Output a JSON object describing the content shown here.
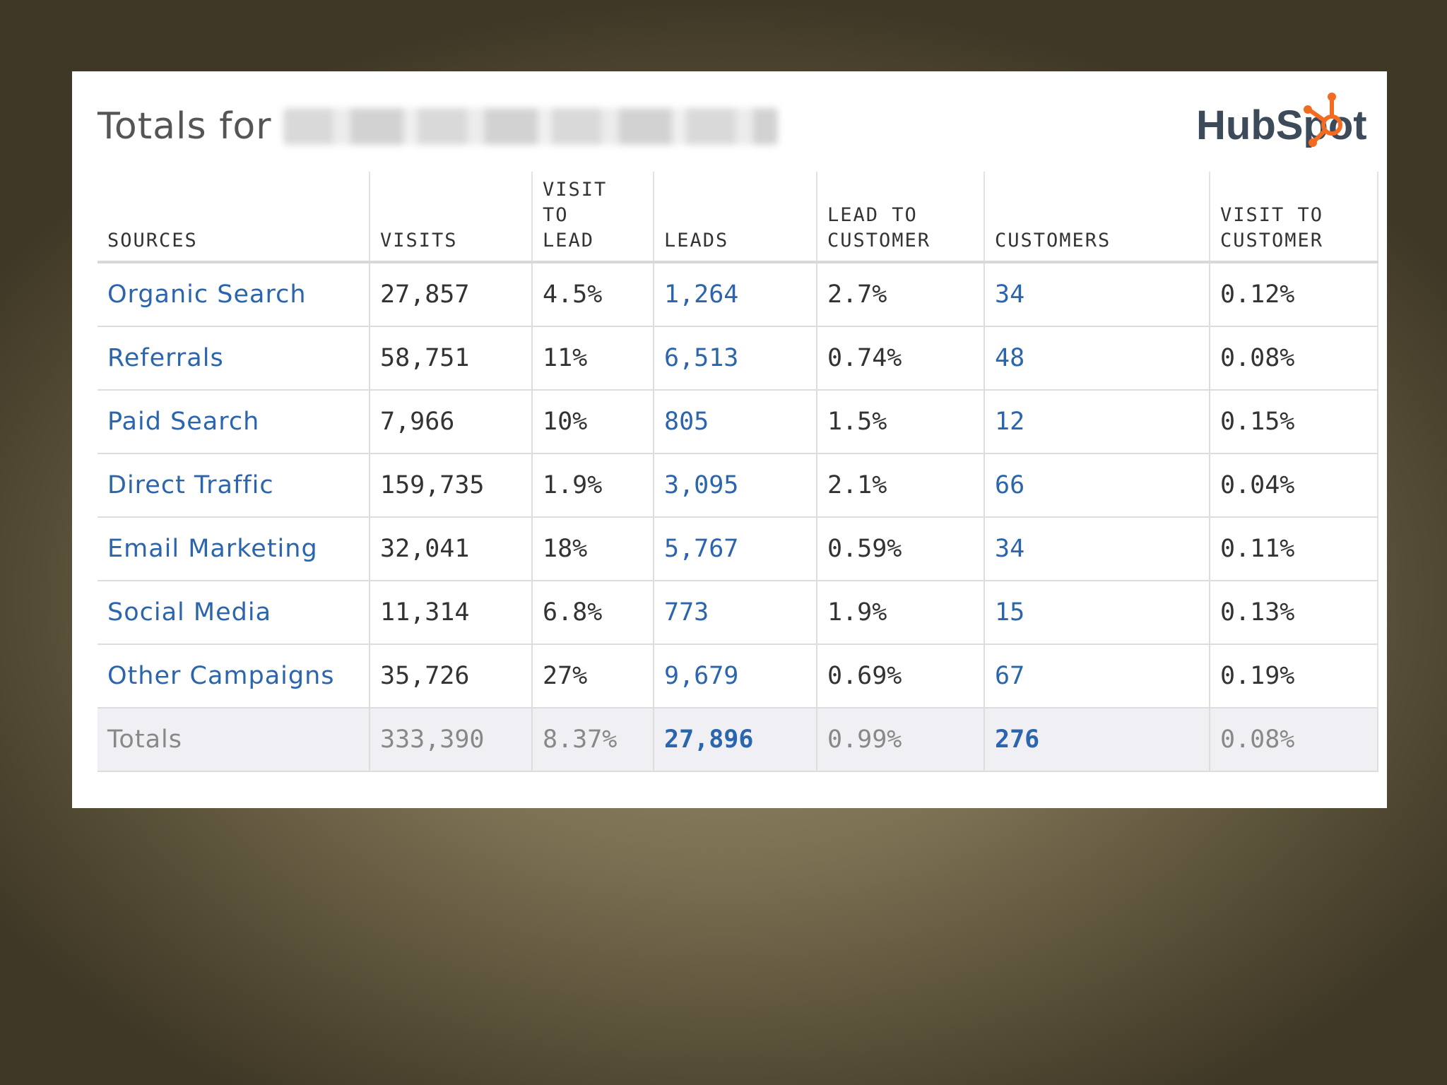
{
  "title_prefix": "Totals for",
  "logo_text": "HubSpot",
  "colors": {
    "link": "#2a65ad",
    "accent": "#f26b21"
  },
  "columns": [
    "SOURCES",
    "VISITS",
    "VISIT TO LEAD",
    "LEADS",
    "LEAD TO CUSTOMER",
    "CUSTOMERS",
    "VISIT TO CUSTOMER"
  ],
  "rows": [
    [
      "Organic Search",
      "27,857",
      "4.5%",
      "1,264",
      "2.7%",
      "34",
      "0.12%"
    ],
    [
      "Referrals",
      "58,751",
      "11%",
      "6,513",
      "0.74%",
      "48",
      "0.08%"
    ],
    [
      "Paid Search",
      "7,966",
      "10%",
      "805",
      "1.5%",
      "12",
      "0.15%"
    ],
    [
      "Direct Traffic",
      "159,735",
      "1.9%",
      "3,095",
      "2.1%",
      "66",
      "0.04%"
    ],
    [
      "Email Marketing",
      "32,041",
      "18%",
      "5,767",
      "0.59%",
      "34",
      "0.11%"
    ],
    [
      "Social Media",
      "11,314",
      "6.8%",
      "773",
      "1.9%",
      "15",
      "0.13%"
    ],
    [
      "Other Campaigns",
      "35,726",
      "27%",
      "9,679",
      "0.69%",
      "67",
      "0.19%"
    ]
  ],
  "totals": [
    "Totals",
    "333,390",
    "8.37%",
    "27,896",
    "0.99%",
    "276",
    "0.08%"
  ]
}
